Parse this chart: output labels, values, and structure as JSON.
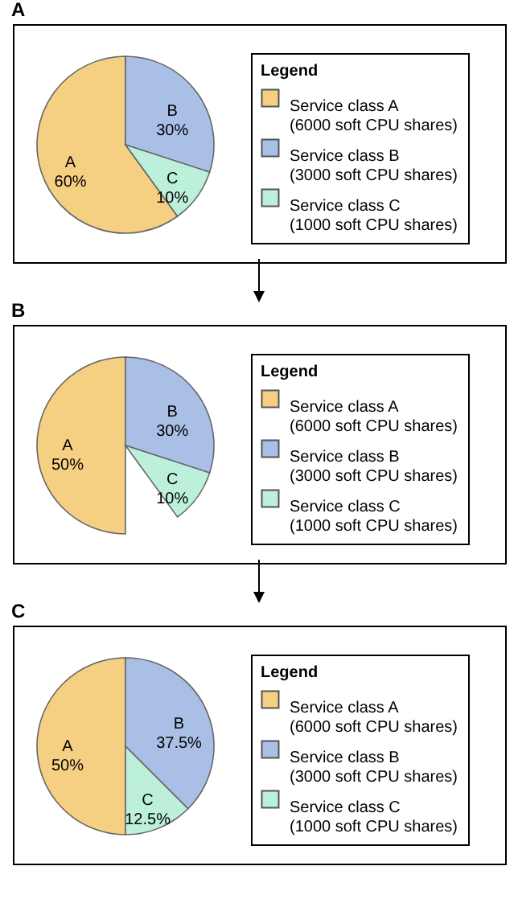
{
  "chart_data": [
    {
      "type": "pie",
      "title": "A",
      "legend_title": "Legend",
      "legend": "right",
      "categories": [
        "Service class A\n(6000 soft CPU shares)",
        "Service class B\n(3000 soft CPU shares)",
        "Service class C\n(1000 soft CPU shares)"
      ],
      "values": [
        60,
        30,
        10
      ],
      "colors": [
        "#f5cf82",
        "#a9bfe6",
        "#bdf0da"
      ],
      "value_labels": [
        "A\n60%",
        "B\n30%",
        "C\n10%"
      ]
    },
    {
      "type": "pie",
      "title": "B",
      "legend_title": "Legend",
      "legend": "right",
      "categories": [
        "Service class A\n(6000 soft CPU shares)",
        "Service class B\n(3000 soft CPU shares)",
        "Service class C\n(1000 soft CPU shares)"
      ],
      "values": [
        50,
        30,
        10
      ],
      "colors": [
        "#f5cf82",
        "#a9bfe6",
        "#bdf0da"
      ],
      "value_labels": [
        "A\n50%",
        "B\n30%",
        "C\n10%"
      ]
    },
    {
      "type": "pie",
      "title": "C",
      "legend_title": "Legend",
      "legend": "right",
      "categories": [
        "Service class A\n(6000 soft CPU shares)",
        "Service class B\n(3000 soft CPU shares)",
        "Service class C\n(1000 soft CPU shares)"
      ],
      "values": [
        50,
        37.5,
        12.5
      ],
      "colors": [
        "#f5cf82",
        "#a9bfe6",
        "#bdf0da"
      ],
      "value_labels": [
        "A\n50%",
        "B\n37.5%",
        "C\n12.5%"
      ]
    }
  ]
}
